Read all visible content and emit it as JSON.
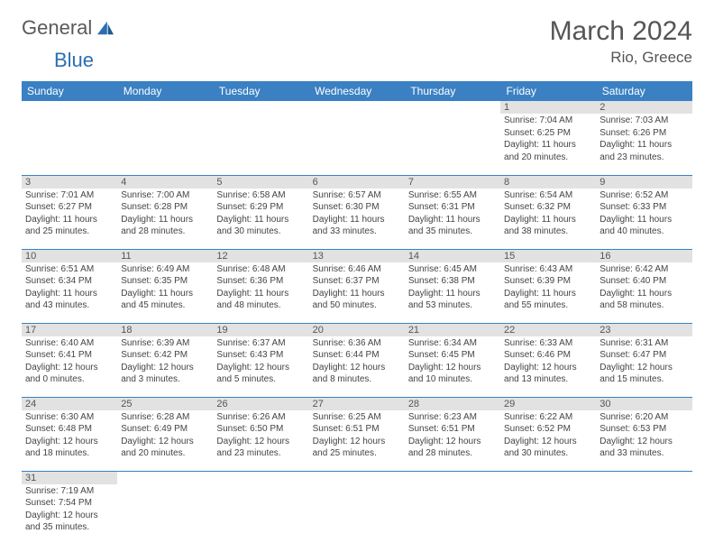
{
  "logo": {
    "general": "General",
    "blue": "Blue"
  },
  "title": "March 2024",
  "location": "Rio, Greece",
  "day_headers": [
    "Sunday",
    "Monday",
    "Tuesday",
    "Wednesday",
    "Thursday",
    "Friday",
    "Saturday"
  ],
  "colors": {
    "header_bg": "#3a80c3",
    "header_text": "#ffffff",
    "daynum_bg": "#e2e2e2",
    "border": "#3a80c3",
    "text": "#444444",
    "logo_gray": "#5a5a5a",
    "logo_blue": "#2b6fb3"
  },
  "weeks": [
    [
      {
        "day": "",
        "lines": []
      },
      {
        "day": "",
        "lines": []
      },
      {
        "day": "",
        "lines": []
      },
      {
        "day": "",
        "lines": []
      },
      {
        "day": "",
        "lines": []
      },
      {
        "day": "1",
        "lines": [
          "Sunrise: 7:04 AM",
          "Sunset: 6:25 PM",
          "Daylight: 11 hours",
          "and 20 minutes."
        ]
      },
      {
        "day": "2",
        "lines": [
          "Sunrise: 7:03 AM",
          "Sunset: 6:26 PM",
          "Daylight: 11 hours",
          "and 23 minutes."
        ]
      }
    ],
    [
      {
        "day": "3",
        "lines": [
          "Sunrise: 7:01 AM",
          "Sunset: 6:27 PM",
          "Daylight: 11 hours",
          "and 25 minutes."
        ]
      },
      {
        "day": "4",
        "lines": [
          "Sunrise: 7:00 AM",
          "Sunset: 6:28 PM",
          "Daylight: 11 hours",
          "and 28 minutes."
        ]
      },
      {
        "day": "5",
        "lines": [
          "Sunrise: 6:58 AM",
          "Sunset: 6:29 PM",
          "Daylight: 11 hours",
          "and 30 minutes."
        ]
      },
      {
        "day": "6",
        "lines": [
          "Sunrise: 6:57 AM",
          "Sunset: 6:30 PM",
          "Daylight: 11 hours",
          "and 33 minutes."
        ]
      },
      {
        "day": "7",
        "lines": [
          "Sunrise: 6:55 AM",
          "Sunset: 6:31 PM",
          "Daylight: 11 hours",
          "and 35 minutes."
        ]
      },
      {
        "day": "8",
        "lines": [
          "Sunrise: 6:54 AM",
          "Sunset: 6:32 PM",
          "Daylight: 11 hours",
          "and 38 minutes."
        ]
      },
      {
        "day": "9",
        "lines": [
          "Sunrise: 6:52 AM",
          "Sunset: 6:33 PM",
          "Daylight: 11 hours",
          "and 40 minutes."
        ]
      }
    ],
    [
      {
        "day": "10",
        "lines": [
          "Sunrise: 6:51 AM",
          "Sunset: 6:34 PM",
          "Daylight: 11 hours",
          "and 43 minutes."
        ]
      },
      {
        "day": "11",
        "lines": [
          "Sunrise: 6:49 AM",
          "Sunset: 6:35 PM",
          "Daylight: 11 hours",
          "and 45 minutes."
        ]
      },
      {
        "day": "12",
        "lines": [
          "Sunrise: 6:48 AM",
          "Sunset: 6:36 PM",
          "Daylight: 11 hours",
          "and 48 minutes."
        ]
      },
      {
        "day": "13",
        "lines": [
          "Sunrise: 6:46 AM",
          "Sunset: 6:37 PM",
          "Daylight: 11 hours",
          "and 50 minutes."
        ]
      },
      {
        "day": "14",
        "lines": [
          "Sunrise: 6:45 AM",
          "Sunset: 6:38 PM",
          "Daylight: 11 hours",
          "and 53 minutes."
        ]
      },
      {
        "day": "15",
        "lines": [
          "Sunrise: 6:43 AM",
          "Sunset: 6:39 PM",
          "Daylight: 11 hours",
          "and 55 minutes."
        ]
      },
      {
        "day": "16",
        "lines": [
          "Sunrise: 6:42 AM",
          "Sunset: 6:40 PM",
          "Daylight: 11 hours",
          "and 58 minutes."
        ]
      }
    ],
    [
      {
        "day": "17",
        "lines": [
          "Sunrise: 6:40 AM",
          "Sunset: 6:41 PM",
          "Daylight: 12 hours",
          "and 0 minutes."
        ]
      },
      {
        "day": "18",
        "lines": [
          "Sunrise: 6:39 AM",
          "Sunset: 6:42 PM",
          "Daylight: 12 hours",
          "and 3 minutes."
        ]
      },
      {
        "day": "19",
        "lines": [
          "Sunrise: 6:37 AM",
          "Sunset: 6:43 PM",
          "Daylight: 12 hours",
          "and 5 minutes."
        ]
      },
      {
        "day": "20",
        "lines": [
          "Sunrise: 6:36 AM",
          "Sunset: 6:44 PM",
          "Daylight: 12 hours",
          "and 8 minutes."
        ]
      },
      {
        "day": "21",
        "lines": [
          "Sunrise: 6:34 AM",
          "Sunset: 6:45 PM",
          "Daylight: 12 hours",
          "and 10 minutes."
        ]
      },
      {
        "day": "22",
        "lines": [
          "Sunrise: 6:33 AM",
          "Sunset: 6:46 PM",
          "Daylight: 12 hours",
          "and 13 minutes."
        ]
      },
      {
        "day": "23",
        "lines": [
          "Sunrise: 6:31 AM",
          "Sunset: 6:47 PM",
          "Daylight: 12 hours",
          "and 15 minutes."
        ]
      }
    ],
    [
      {
        "day": "24",
        "lines": [
          "Sunrise: 6:30 AM",
          "Sunset: 6:48 PM",
          "Daylight: 12 hours",
          "and 18 minutes."
        ]
      },
      {
        "day": "25",
        "lines": [
          "Sunrise: 6:28 AM",
          "Sunset: 6:49 PM",
          "Daylight: 12 hours",
          "and 20 minutes."
        ]
      },
      {
        "day": "26",
        "lines": [
          "Sunrise: 6:26 AM",
          "Sunset: 6:50 PM",
          "Daylight: 12 hours",
          "and 23 minutes."
        ]
      },
      {
        "day": "27",
        "lines": [
          "Sunrise: 6:25 AM",
          "Sunset: 6:51 PM",
          "Daylight: 12 hours",
          "and 25 minutes."
        ]
      },
      {
        "day": "28",
        "lines": [
          "Sunrise: 6:23 AM",
          "Sunset: 6:51 PM",
          "Daylight: 12 hours",
          "and 28 minutes."
        ]
      },
      {
        "day": "29",
        "lines": [
          "Sunrise: 6:22 AM",
          "Sunset: 6:52 PM",
          "Daylight: 12 hours",
          "and 30 minutes."
        ]
      },
      {
        "day": "30",
        "lines": [
          "Sunrise: 6:20 AM",
          "Sunset: 6:53 PM",
          "Daylight: 12 hours",
          "and 33 minutes."
        ]
      }
    ],
    [
      {
        "day": "31",
        "lines": [
          "Sunrise: 7:19 AM",
          "Sunset: 7:54 PM",
          "Daylight: 12 hours",
          "and 35 minutes."
        ]
      },
      {
        "day": "",
        "lines": []
      },
      {
        "day": "",
        "lines": []
      },
      {
        "day": "",
        "lines": []
      },
      {
        "day": "",
        "lines": []
      },
      {
        "day": "",
        "lines": []
      },
      {
        "day": "",
        "lines": []
      }
    ]
  ]
}
